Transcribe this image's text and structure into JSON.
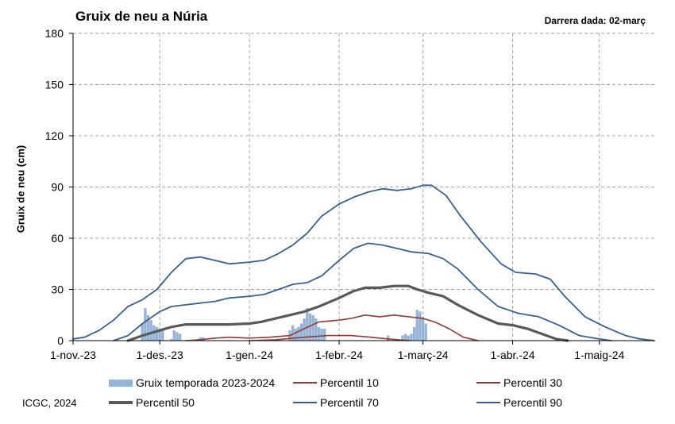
{
  "title": "Gruix de neu a Núria",
  "last_data": "Darrera dada: 02-març",
  "credit": "ICGC, 2024",
  "colors": {
    "bars": "#95b3d7",
    "p10": "#953735",
    "p30": "#953735",
    "p50": "#595959",
    "p70": "#366092",
    "p90": "#366092",
    "grid": "#a6a6a6"
  },
  "chart_data": {
    "type": "line",
    "title": "Gruix de neu a Núria",
    "xlabel": "",
    "ylabel": "Gruix de neu (cm)",
    "ylim": [
      0,
      180
    ],
    "yticks": [
      0,
      30,
      60,
      90,
      120,
      150,
      180
    ],
    "xlim": [
      "2023-11-01",
      "2024-05-20"
    ],
    "xticks": [
      {
        "date": "2023-11-01",
        "label": "1-nov.-23"
      },
      {
        "date": "2023-12-01",
        "label": "1-des.-23"
      },
      {
        "date": "2024-01-01",
        "label": "1-gen.-24"
      },
      {
        "date": "2024-02-01",
        "label": "1-febr.-24"
      },
      {
        "date": "2024-03-01",
        "label": "1-març-24"
      },
      {
        "date": "2024-04-01",
        "label": "1-abr.-24"
      },
      {
        "date": "2024-05-01",
        "label": "1-maig-24"
      }
    ],
    "grid": true,
    "legend_position": "bottom",
    "bars": {
      "name": "Gruix temporada 2023-2024",
      "points": [
        [
          "2023-11-25",
          10
        ],
        [
          "2023-11-26",
          19
        ],
        [
          "2023-11-27",
          15
        ],
        [
          "2023-11-28",
          12
        ],
        [
          "2023-11-29",
          9
        ],
        [
          "2023-11-30",
          8
        ],
        [
          "2023-12-01",
          7
        ],
        [
          "2023-12-02",
          6
        ],
        [
          "2023-12-05",
          1
        ],
        [
          "2023-12-06",
          6
        ],
        [
          "2023-12-07",
          5
        ],
        [
          "2023-12-08",
          4
        ],
        [
          "2023-12-14",
          1
        ],
        [
          "2023-12-15",
          2
        ],
        [
          "2023-12-16",
          2
        ],
        [
          "2024-01-15",
          6
        ],
        [
          "2024-01-16",
          9
        ],
        [
          "2024-01-17",
          7
        ],
        [
          "2024-01-18",
          8
        ],
        [
          "2024-01-19",
          10
        ],
        [
          "2024-01-20",
          13
        ],
        [
          "2024-01-21",
          19
        ],
        [
          "2024-01-22",
          16
        ],
        [
          "2024-01-23",
          15
        ],
        [
          "2024-01-24",
          13
        ],
        [
          "2024-01-25",
          8
        ],
        [
          "2024-01-26",
          7
        ],
        [
          "2024-01-27",
          7
        ],
        [
          "2024-02-18",
          3
        ],
        [
          "2024-02-23",
          3
        ],
        [
          "2024-02-24",
          4
        ],
        [
          "2024-02-25",
          3
        ],
        [
          "2024-02-26",
          4
        ],
        [
          "2024-02-27",
          8
        ],
        [
          "2024-02-28",
          18
        ],
        [
          "2024-02-29",
          17
        ],
        [
          "2024-03-01",
          14
        ],
        [
          "2024-03-02",
          10
        ]
      ]
    },
    "series": [
      {
        "name": "Percentil 10",
        "style": "p10",
        "points": [
          [
            "2023-12-10",
            0
          ],
          [
            "2023-12-15",
            0.5
          ],
          [
            "2023-12-20",
            1.5
          ],
          [
            "2023-12-25",
            2
          ],
          [
            "2024-01-01",
            1.5
          ],
          [
            "2024-01-08",
            2
          ],
          [
            "2024-01-15",
            3
          ],
          [
            "2024-01-20",
            7
          ],
          [
            "2024-01-25",
            11
          ],
          [
            "2024-02-01",
            12
          ],
          [
            "2024-02-05",
            13
          ],
          [
            "2024-02-10",
            15
          ],
          [
            "2024-02-15",
            14
          ],
          [
            "2024-02-20",
            15
          ],
          [
            "2024-02-25",
            14
          ],
          [
            "2024-03-01",
            13
          ],
          [
            "2024-03-05",
            11
          ],
          [
            "2024-03-10",
            7
          ],
          [
            "2024-03-15",
            2
          ],
          [
            "2024-03-20",
            0
          ]
        ]
      },
      {
        "name": "Percentil 30",
        "style": "p30",
        "points": [
          [
            "2024-01-01",
            0
          ],
          [
            "2024-01-10",
            0.5
          ],
          [
            "2024-01-20",
            2
          ],
          [
            "2024-01-28",
            3
          ],
          [
            "2024-02-05",
            3
          ],
          [
            "2024-02-12",
            2
          ],
          [
            "2024-02-18",
            1
          ],
          [
            "2024-02-25",
            0
          ]
        ]
      },
      {
        "name": "Percentil 50",
        "style": "p50",
        "points": [
          [
            "2023-11-20",
            0
          ],
          [
            "2023-11-25",
            3
          ],
          [
            "2023-12-01",
            6
          ],
          [
            "2023-12-05",
            8
          ],
          [
            "2023-12-10",
            9.5
          ],
          [
            "2023-12-15",
            9.5
          ],
          [
            "2023-12-20",
            9.5
          ],
          [
            "2023-12-25",
            9.5
          ],
          [
            "2024-01-01",
            10
          ],
          [
            "2024-01-05",
            11
          ],
          [
            "2024-01-10",
            13
          ],
          [
            "2024-01-15",
            15
          ],
          [
            "2024-01-20",
            17
          ],
          [
            "2024-01-25",
            20
          ],
          [
            "2024-02-01",
            25
          ],
          [
            "2024-02-06",
            29
          ],
          [
            "2024-02-10",
            31
          ],
          [
            "2024-02-15",
            31
          ],
          [
            "2024-02-20",
            32
          ],
          [
            "2024-02-25",
            32
          ],
          [
            "2024-02-28",
            30
          ],
          [
            "2024-03-03",
            28
          ],
          [
            "2024-03-08",
            26
          ],
          [
            "2024-03-13",
            21
          ],
          [
            "2024-03-20",
            15
          ],
          [
            "2024-03-27",
            10
          ],
          [
            "2024-04-01",
            9
          ],
          [
            "2024-04-06",
            7
          ],
          [
            "2024-04-11",
            4
          ],
          [
            "2024-04-16",
            1
          ],
          [
            "2024-04-20",
            0
          ]
        ]
      },
      {
        "name": "Percentil 70",
        "style": "p70",
        "points": [
          [
            "2023-11-15",
            0
          ],
          [
            "2023-11-20",
            3
          ],
          [
            "2023-11-25",
            10
          ],
          [
            "2023-12-01",
            17
          ],
          [
            "2023-12-05",
            20
          ],
          [
            "2023-12-10",
            21
          ],
          [
            "2023-12-15",
            22
          ],
          [
            "2023-12-20",
            23
          ],
          [
            "2023-12-25",
            25
          ],
          [
            "2024-01-01",
            26
          ],
          [
            "2024-01-06",
            27
          ],
          [
            "2024-01-11",
            30
          ],
          [
            "2024-01-16",
            33
          ],
          [
            "2024-01-21",
            34
          ],
          [
            "2024-01-26",
            38
          ],
          [
            "2024-02-01",
            47
          ],
          [
            "2024-02-06",
            54
          ],
          [
            "2024-02-11",
            57
          ],
          [
            "2024-02-16",
            56
          ],
          [
            "2024-02-21",
            54
          ],
          [
            "2024-02-26",
            52
          ],
          [
            "2024-03-03",
            51
          ],
          [
            "2024-03-08",
            48
          ],
          [
            "2024-03-13",
            42
          ],
          [
            "2024-03-20",
            30
          ],
          [
            "2024-03-27",
            20
          ],
          [
            "2024-04-03",
            16
          ],
          [
            "2024-04-10",
            14
          ],
          [
            "2024-04-17",
            9
          ],
          [
            "2024-04-24",
            3
          ],
          [
            "2024-05-01",
            1
          ],
          [
            "2024-05-05",
            0
          ]
        ]
      },
      {
        "name": "Percentil 90",
        "style": "p90",
        "points": [
          [
            "2023-11-01",
            1
          ],
          [
            "2023-11-05",
            2
          ],
          [
            "2023-11-10",
            6
          ],
          [
            "2023-11-15",
            12
          ],
          [
            "2023-11-20",
            20
          ],
          [
            "2023-11-25",
            24
          ],
          [
            "2023-11-30",
            30
          ],
          [
            "2023-12-05",
            40
          ],
          [
            "2023-12-10",
            48
          ],
          [
            "2023-12-15",
            49
          ],
          [
            "2023-12-20",
            47
          ],
          [
            "2023-12-25",
            45
          ],
          [
            "2024-01-01",
            46
          ],
          [
            "2024-01-06",
            47
          ],
          [
            "2024-01-11",
            51
          ],
          [
            "2024-01-16",
            56
          ],
          [
            "2024-01-21",
            63
          ],
          [
            "2024-01-26",
            73
          ],
          [
            "2024-02-01",
            80
          ],
          [
            "2024-02-06",
            84
          ],
          [
            "2024-02-11",
            87
          ],
          [
            "2024-02-16",
            89
          ],
          [
            "2024-02-21",
            88
          ],
          [
            "2024-02-26",
            89
          ],
          [
            "2024-03-01",
            91
          ],
          [
            "2024-03-04",
            91
          ],
          [
            "2024-03-09",
            85
          ],
          [
            "2024-03-14",
            73
          ],
          [
            "2024-03-21",
            58
          ],
          [
            "2024-03-28",
            45
          ],
          [
            "2024-04-02",
            40
          ],
          [
            "2024-04-09",
            39
          ],
          [
            "2024-04-14",
            36
          ],
          [
            "2024-04-19",
            26
          ],
          [
            "2024-04-26",
            14
          ],
          [
            "2024-05-03",
            8
          ],
          [
            "2024-05-10",
            3
          ],
          [
            "2024-05-15",
            1
          ],
          [
            "2024-05-20",
            0
          ]
        ]
      }
    ]
  },
  "legend": [
    {
      "label": "Gruix temporada 2023-2024",
      "style": "bars"
    },
    {
      "label": "Percentil 10",
      "style": "p10"
    },
    {
      "label": "Percentil 30",
      "style": "p30"
    },
    {
      "label": "Percentil 50",
      "style": "p50"
    },
    {
      "label": "Percentil 70",
      "style": "p70"
    },
    {
      "label": "Percentil 90",
      "style": "p90"
    }
  ]
}
